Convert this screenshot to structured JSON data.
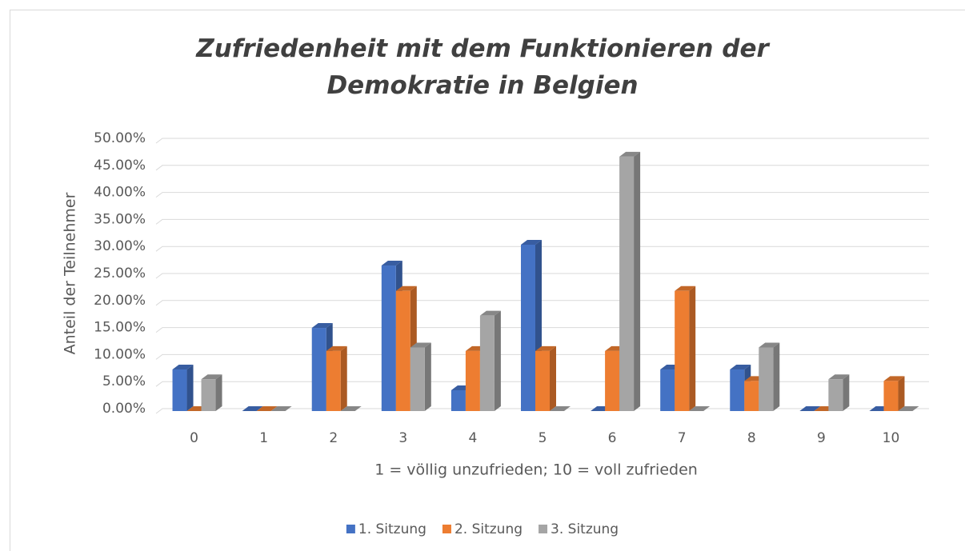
{
  "chart_data": {
    "type": "bar3d",
    "title": "Zufriedenheit mit dem Funktionieren der Demokratie in Belgien",
    "x_label": "1 = völlig unzufrieden; 10 = voll zufrieden",
    "y_label": "Anteil der Teilnehmer",
    "categories": [
      "0",
      "1",
      "2",
      "3",
      "4",
      "5",
      "6",
      "7",
      "8",
      "9",
      "10"
    ],
    "series": [
      {
        "name": "1. Sitzung",
        "color": "#4472c4",
        "values": [
          7.69,
          0,
          15.38,
          26.92,
          3.85,
          30.77,
          0,
          7.69,
          7.69,
          0,
          0
        ]
      },
      {
        "name": "2. Sitzung",
        "color": "#ed7d31",
        "values": [
          0,
          0,
          11.11,
          22.22,
          11.11,
          11.11,
          11.11,
          22.22,
          5.56,
          0,
          5.56
        ]
      },
      {
        "name": "3. Sitzung",
        "color": "#a5a5a5",
        "values": [
          5.88,
          0,
          0,
          11.76,
          17.65,
          0,
          47.06,
          0,
          11.76,
          5.88,
          0
        ]
      }
    ],
    "ylim": [
      0,
      50
    ],
    "yticks": [
      {
        "value": 0,
        "label": "0.00%"
      },
      {
        "value": 5,
        "label": "5.00%"
      },
      {
        "value": 10,
        "label": "10.00%"
      },
      {
        "value": 15,
        "label": "15.00%"
      },
      {
        "value": 20,
        "label": "20.00%"
      },
      {
        "value": 25,
        "label": "25.00%"
      },
      {
        "value": 30,
        "label": "30.00%"
      },
      {
        "value": 35,
        "label": "35.00%"
      },
      {
        "value": 40,
        "label": "40.00%"
      },
      {
        "value": 45,
        "label": "45.00%"
      },
      {
        "value": 50,
        "label": "50.00%"
      }
    ],
    "grid": true,
    "legend": "bottom"
  }
}
